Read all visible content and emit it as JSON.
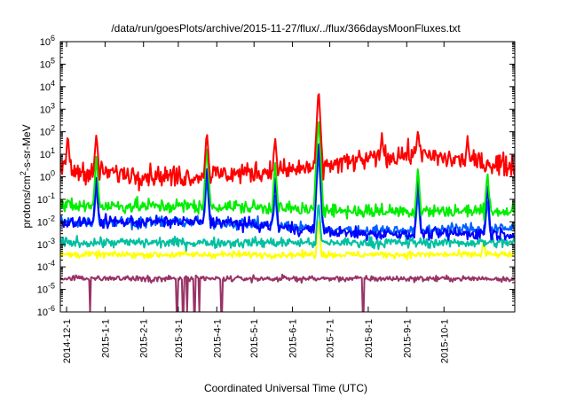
{
  "chart_data": {
    "type": "line",
    "title": "/data/run/goesPlots/archive/2015-11-27/flux/../flux/366daysMoonFluxes.txt",
    "xlabel": "Coordinated Universal Time (UTC)",
    "ylabel": {
      "prefix": "protons/cm",
      "sup": "2",
      "suffix": "-s-sr-MeV"
    },
    "y_scale": "log",
    "ylim": [
      1e-06,
      1000000.0
    ],
    "y_ticks": [
      {
        "base": "10",
        "exp": "-6",
        "value": 1e-06
      },
      {
        "base": "10",
        "exp": "-5",
        "value": 1e-05
      },
      {
        "base": "10",
        "exp": "-4",
        "value": 0.0001
      },
      {
        "base": "10",
        "exp": "-3",
        "value": 0.001
      },
      {
        "base": "10",
        "exp": "-2",
        "value": 0.01
      },
      {
        "base": "10",
        "exp": "-1",
        "value": 0.1
      },
      {
        "base": "10",
        "exp": "0",
        "value": 1
      },
      {
        "base": "10",
        "exp": "1",
        "value": 10
      },
      {
        "base": "10",
        "exp": "2",
        "value": 100
      },
      {
        "base": "10",
        "exp": "3",
        "value": 1000
      },
      {
        "base": "10",
        "exp": "4",
        "value": 10000
      },
      {
        "base": "10",
        "exp": "5",
        "value": 100000
      },
      {
        "base": "10",
        "exp": "6",
        "value": 1000000
      }
    ],
    "xlim": [
      "2014-11-26",
      "2015-11-27"
    ],
    "x_ticks": [
      "2014-12-1",
      "2015-1-1",
      "2015-2-1",
      "2015-3-1",
      "2015-4-1",
      "2015-5-1",
      "2015-6-1",
      "2015-7-1",
      "2015-8-1",
      "2015-9-1",
      "2015-10-1"
    ],
    "grid": false,
    "legend": "none",
    "series": [
      {
        "color": "#993366",
        "baseline_points": [
          [
            "2014-11-26",
            3e-05
          ],
          [
            "2015-11-27",
            3e-05
          ]
        ],
        "spikes": [
          [
            "2014-12-20",
            1e-06
          ],
          [
            "2015-2-28",
            1e-06
          ],
          [
            "2015-3-5",
            1e-06
          ],
          [
            "2015-3-8",
            1e-06
          ],
          [
            "2015-3-14",
            1e-06
          ],
          [
            "2015-3-18",
            1e-06
          ],
          [
            "2015-4-5",
            1e-06
          ],
          [
            "2015-7-28",
            1e-06
          ]
        ]
      },
      {
        "color": "#ffff00",
        "baseline_points": [
          [
            "2014-11-26",
            0.00035
          ],
          [
            "2015-11-27",
            0.00035
          ]
        ],
        "spikes": [
          [
            "2015-6-22",
            0.02
          ],
          [
            "2015-11-2",
            0.002
          ]
        ]
      },
      {
        "color": "#00c0a0",
        "baseline_points": [
          [
            "2014-11-26",
            0.0012
          ],
          [
            "2015-11-27",
            0.0012
          ]
        ],
        "spikes": [
          [
            "2015-6-22",
            0.1
          ]
        ]
      },
      {
        "color": "#0060ff",
        "baseline_points": [
          [
            "2014-11-26",
            0.01
          ],
          [
            "2015-4-1",
            0.01
          ],
          [
            "2015-7-20",
            0.004
          ],
          [
            "2015-11-27",
            0.005
          ]
        ],
        "spikes": [
          [
            "2014-12-25",
            0.5
          ],
          [
            "2015-3-24",
            1
          ],
          [
            "2015-5-18",
            0.2
          ],
          [
            "2015-6-22",
            20
          ],
          [
            "2015-9-10",
            0.2
          ],
          [
            "2015-11-5",
            0.1
          ]
        ]
      },
      {
        "color": "#0000ff",
        "baseline_points": [
          [
            "2014-11-26",
            0.01
          ],
          [
            "2015-4-1",
            0.01
          ],
          [
            "2015-7-20",
            0.003
          ],
          [
            "2015-11-27",
            0.003
          ]
        ],
        "spikes": [
          [
            "2014-12-25",
            1
          ],
          [
            "2015-3-24",
            4
          ],
          [
            "2015-5-18",
            1
          ],
          [
            "2015-6-22",
            60
          ],
          [
            "2015-9-10",
            1
          ],
          [
            "2015-11-5",
            0.5
          ]
        ]
      },
      {
        "color": "#00ee00",
        "baseline_points": [
          [
            "2014-11-26",
            0.05
          ],
          [
            "2015-4-1",
            0.05
          ],
          [
            "2015-7-20",
            0.03
          ],
          [
            "2015-11-27",
            0.03
          ]
        ],
        "spikes": [
          [
            "2014-12-25",
            10
          ],
          [
            "2015-3-24",
            30
          ],
          [
            "2015-5-18",
            5
          ],
          [
            "2015-6-22",
            700
          ],
          [
            "2015-9-10",
            3
          ],
          [
            "2015-11-5",
            2
          ]
        ]
      },
      {
        "color": "#ff0000",
        "baseline_points": [
          [
            "2014-11-26",
            2
          ],
          [
            "2015-3-1",
            1
          ],
          [
            "2015-6-1",
            2
          ],
          [
            "2015-9-1",
            10
          ],
          [
            "2015-11-27",
            3
          ]
        ],
        "spikes": [
          [
            "2014-12-2",
            80
          ],
          [
            "2014-12-25",
            100
          ],
          [
            "2015-3-24",
            120
          ],
          [
            "2015-5-18",
            60
          ],
          [
            "2015-6-22",
            10000
          ],
          [
            "2015-8-12",
            80
          ],
          [
            "2015-9-10",
            150
          ],
          [
            "2015-10-20",
            60
          ]
        ]
      }
    ]
  }
}
